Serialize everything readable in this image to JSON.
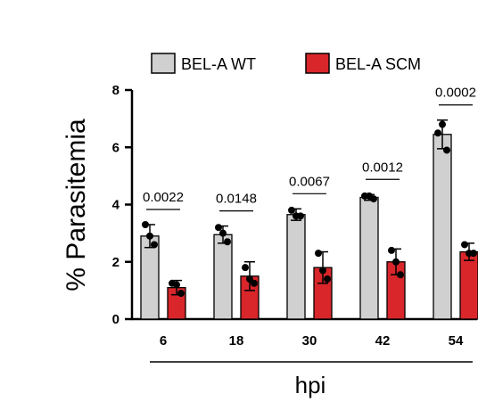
{
  "chart_data": {
    "type": "bar",
    "title": "",
    "xlabel": "hpi",
    "ylabel": "% Parasitemia",
    "ylim": [
      0,
      8
    ],
    "yticks": [
      0,
      2,
      4,
      6,
      8
    ],
    "grid": false,
    "legend_position": "top",
    "categories": [
      "6",
      "18",
      "30",
      "42",
      "54"
    ],
    "series": [
      {
        "name": "BEL-A WT",
        "color": "#d0d0d0",
        "values": [
          2.9,
          2.95,
          3.65,
          4.25,
          6.45
        ],
        "errors": [
          0.4,
          0.3,
          0.2,
          0.1,
          0.5
        ],
        "points": [
          [
            3.3,
            2.9,
            2.6
          ],
          [
            3.2,
            3.0,
            2.7
          ],
          [
            3.8,
            3.6,
            3.6
          ],
          [
            4.3,
            4.3,
            4.2
          ],
          [
            6.5,
            6.8,
            5.9
          ]
        ]
      },
      {
        "name": "BEL-A SCM",
        "color": "#d8262a",
        "values": [
          1.1,
          1.5,
          1.8,
          2.0,
          2.35
        ],
        "errors": [
          0.25,
          0.5,
          0.55,
          0.45,
          0.3
        ],
        "points": [
          [
            1.25,
            1.2,
            0.9
          ],
          [
            1.8,
            1.4,
            1.25
          ],
          [
            2.3,
            1.7,
            1.4
          ],
          [
            2.4,
            2.0,
            1.55
          ],
          [
            2.6,
            2.3,
            2.3
          ]
        ]
      }
    ],
    "p_values": [
      "0.0022",
      "0.0148",
      "0.0067",
      "0.0012",
      "0.0002"
    ]
  }
}
